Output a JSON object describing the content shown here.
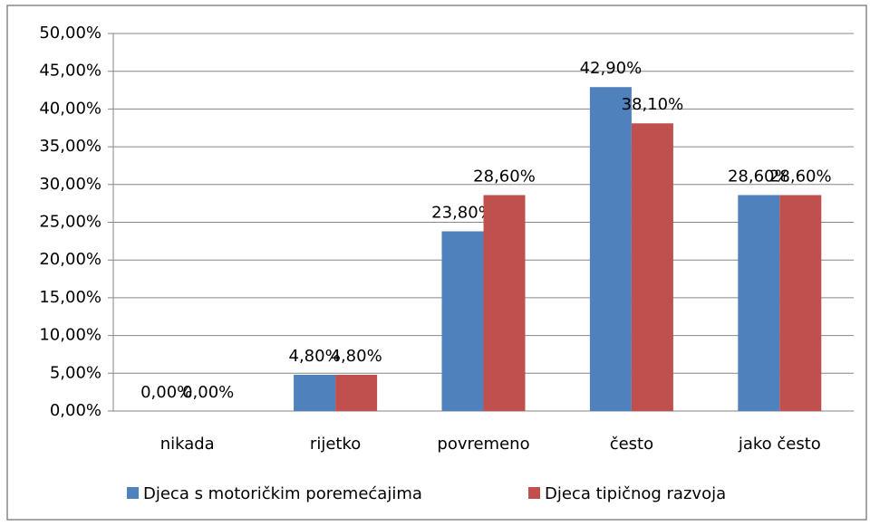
{
  "chart_data": {
    "type": "bar",
    "categories": [
      "nikada",
      "rijetko",
      "povremeno",
      "često",
      "jako često"
    ],
    "series": [
      {
        "name": "Djeca s motoričkim poremećajima",
        "color": "#4f81bd",
        "values": [
          0,
          4.8,
          23.8,
          42.9,
          28.6
        ],
        "value_labels": [
          "0,00%",
          "4,80%",
          "23,80%",
          "42,90%",
          "28,60%"
        ]
      },
      {
        "name": "Djeca tipičnog razvoja",
        "color": "#c0504d",
        "values": [
          0,
          4.8,
          28.6,
          38.1,
          28.6
        ],
        "value_labels": [
          "0,00%",
          "4,80%",
          "28,60%",
          "38,10%",
          "28,60%"
        ]
      }
    ],
    "ylim": [
      0,
      50
    ],
    "yticks": [
      {
        "value": 0,
        "label": "0,00%"
      },
      {
        "value": 5,
        "label": "5,00%"
      },
      {
        "value": 10,
        "label": "10,00%"
      },
      {
        "value": 15,
        "label": "15,00%"
      },
      {
        "value": 20,
        "label": "20,00%"
      },
      {
        "value": 25,
        "label": "25,00%"
      },
      {
        "value": 30,
        "label": "30,00%"
      },
      {
        "value": 35,
        "label": "35,00%"
      },
      {
        "value": 40,
        "label": "40,00%"
      },
      {
        "value": 45,
        "label": "45,00%"
      },
      {
        "value": 50,
        "label": "50,00%"
      }
    ],
    "grid": true,
    "legend": "bottom"
  }
}
